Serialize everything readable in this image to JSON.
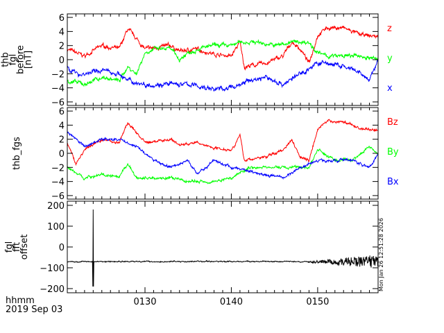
{
  "chart_data": {
    "type": "line",
    "x_units": "minutes after 01:00 UT",
    "xlim": [
      21,
      57
    ],
    "x_ticks": [
      {
        "v": 30,
        "label": "0130"
      },
      {
        "v": 40,
        "label": "0140"
      },
      {
        "v": 50,
        "label": "0150"
      }
    ],
    "xaxis_label": "hhmm",
    "date_label": "2019 Sep 03",
    "timestamp": "Mon Jan 26 12:51:28 2026",
    "panels": [
      {
        "ylabel": [
          "thb",
          "fgl",
          "before",
          "[nT]"
        ],
        "ylim": [
          -6.5,
          6.5
        ],
        "yticks": [
          -6,
          -4,
          -2,
          0,
          2,
          4,
          6
        ],
        "series": [
          {
            "name": "z",
            "color": "#ff0000",
            "noise": 0.3,
            "points": [
              [
                21,
                1.5
              ],
              [
                23,
                0.5
              ],
              [
                25,
                2
              ],
              [
                27,
                1.5
              ],
              [
                28,
                4.3
              ],
              [
                29,
                3
              ],
              [
                30,
                1.5
              ],
              [
                33,
                2
              ],
              [
                34,
                1.2
              ],
              [
                36,
                1.5
              ],
              [
                38,
                0.8
              ],
              [
                40,
                0.5
              ],
              [
                41,
                2.5
              ],
              [
                41.5,
                -1
              ],
              [
                44,
                -0.5
              ],
              [
                46,
                0.5
              ],
              [
                47,
                2.5
              ],
              [
                48,
                1.5
              ],
              [
                49,
                -0.5
              ],
              [
                50,
                3.5
              ],
              [
                51,
                4.5
              ],
              [
                53,
                4.5
              ],
              [
                55,
                3.5
              ],
              [
                57,
                3.3
              ]
            ]
          },
          {
            "name": "y",
            "color": "#00ff00",
            "noise": 0.3,
            "points": [
              [
                21,
                -3
              ],
              [
                23,
                -3.5
              ],
              [
                25,
                -2.5
              ],
              [
                27,
                -3
              ],
              [
                28,
                -1
              ],
              [
                29,
                -2
              ],
              [
                30,
                1
              ],
              [
                31,
                1.5
              ],
              [
                33,
                1.5
              ],
              [
                34,
                0
              ],
              [
                35,
                1
              ],
              [
                36,
                1.5
              ],
              [
                38,
                2
              ],
              [
                40,
                2
              ],
              [
                41,
                2.5
              ],
              [
                43,
                2.5
              ],
              [
                45,
                2
              ],
              [
                47,
                2.5
              ],
              [
                49,
                2.5
              ],
              [
                50,
                1
              ],
              [
                51,
                0.5
              ],
              [
                53,
                0.5
              ],
              [
                55,
                0.5
              ],
              [
                57,
                0
              ]
            ]
          },
          {
            "name": "x",
            "color": "#0000ff",
            "noise": 0.35,
            "points": [
              [
                21,
                -1
              ],
              [
                22,
                -2
              ],
              [
                23,
                -2
              ],
              [
                25,
                -1.5
              ],
              [
                27,
                -2
              ],
              [
                28,
                -3
              ],
              [
                30,
                -3.5
              ],
              [
                33,
                -3.5
              ],
              [
                35,
                -3.5
              ],
              [
                38,
                -4.2
              ],
              [
                40,
                -4
              ],
              [
                42,
                -3
              ],
              [
                44,
                -2.5
              ],
              [
                46,
                -3.5
              ],
              [
                48,
                -2
              ],
              [
                50,
                -0.5
              ],
              [
                51,
                -0.5
              ],
              [
                53,
                -1
              ],
              [
                55,
                -2
              ],
              [
                56,
                -3
              ],
              [
                57,
                0
              ]
            ]
          }
        ]
      },
      {
        "ylabel": [
          "thb_fgs"
        ],
        "ylim": [
          -6.5,
          6.5
        ],
        "yticks": [
          -6,
          -4,
          -2,
          0,
          2,
          4,
          6
        ],
        "series": [
          {
            "name": "Bz",
            "color": "#ff0000",
            "noise": 0.2,
            "points": [
              [
                21,
                1.5
              ],
              [
                22,
                -1.5
              ],
              [
                23,
                0.5
              ],
              [
                25,
                2
              ],
              [
                27,
                1.5
              ],
              [
                28,
                4.3
              ],
              [
                29,
                3
              ],
              [
                30,
                1.5
              ],
              [
                33,
                2
              ],
              [
                34,
                1.2
              ],
              [
                36,
                1.5
              ],
              [
                38,
                0.8
              ],
              [
                40,
                0.5
              ],
              [
                41,
                2.5
              ],
              [
                41.5,
                -1
              ],
              [
                44,
                -0.5
              ],
              [
                46,
                0.5
              ],
              [
                47,
                2
              ],
              [
                48,
                -0.5
              ],
              [
                49,
                -1
              ],
              [
                50,
                3.5
              ],
              [
                51,
                4.5
              ],
              [
                53,
                4.5
              ],
              [
                55,
                3.5
              ],
              [
                57,
                3.3
              ]
            ]
          },
          {
            "name": "By",
            "color": "#00ff00",
            "noise": 0.2,
            "points": [
              [
                21,
                -2
              ],
              [
                23,
                -3.5
              ],
              [
                25,
                -3
              ],
              [
                27,
                -3.5
              ],
              [
                28,
                -1.5
              ],
              [
                29,
                -3.5
              ],
              [
                33,
                -3.5
              ],
              [
                35,
                -4
              ],
              [
                38,
                -4
              ],
              [
                40,
                -3.5
              ],
              [
                42,
                -2
              ],
              [
                45,
                -2
              ],
              [
                47,
                -2
              ],
              [
                49,
                -2
              ],
              [
                50,
                0.5
              ],
              [
                52,
                -1
              ],
              [
                54,
                -1
              ],
              [
                56,
                1
              ],
              [
                57,
                0
              ]
            ]
          },
          {
            "name": "Bx",
            "color": "#0000ff",
            "noise": 0.2,
            "points": [
              [
                21,
                3
              ],
              [
                23,
                1
              ],
              [
                25,
                2
              ],
              [
                27,
                2
              ],
              [
                29,
                1
              ],
              [
                31,
                -1
              ],
              [
                33,
                -2
              ],
              [
                35,
                -1
              ],
              [
                36,
                -3
              ],
              [
                38,
                -1
              ],
              [
                40,
                -2
              ],
              [
                42,
                -2.5
              ],
              [
                44,
                -3
              ],
              [
                46,
                -3.5
              ],
              [
                48,
                -2
              ],
              [
                50,
                -1
              ],
              [
                52,
                -1
              ],
              [
                54,
                -1
              ],
              [
                56,
                -2
              ],
              [
                57,
                0
              ]
            ]
          }
        ]
      },
      {
        "ylabel": [
          "fgl",
          "fft",
          "offset"
        ],
        "ylim": [
          -220,
          220
        ],
        "yticks": [
          -200,
          -100,
          0,
          100,
          200
        ],
        "series": [
          {
            "name": "offset",
            "color": "#000000",
            "noise": 3,
            "points": [
              [
                21,
                -70
              ],
              [
                57,
                -70
              ]
            ],
            "spike": {
              "t": 24,
              "max": 180,
              "min": -190
            },
            "noisy_after": 48
          }
        ]
      }
    ]
  }
}
